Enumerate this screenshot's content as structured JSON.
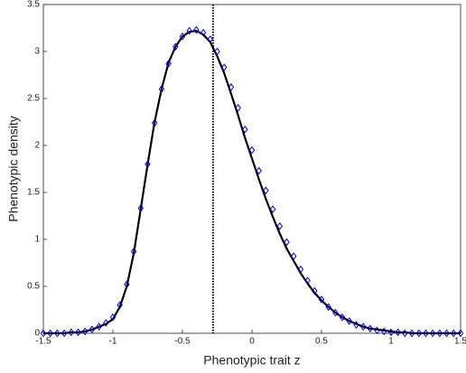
{
  "chart_data": {
    "type": "line",
    "xlabel": "Phenotypic trait z",
    "ylabel": "Phenotypic density",
    "x": [
      -1.5,
      -1.45,
      -1.4,
      -1.35,
      -1.3,
      -1.25,
      -1.2,
      -1.15,
      -1.1,
      -1.05,
      -1,
      -0.95,
      -0.9,
      -0.85,
      -0.8,
      -0.75,
      -0.7,
      -0.65,
      -0.6,
      -0.55,
      -0.5,
      -0.45,
      -0.4,
      -0.35,
      -0.3,
      -0.25,
      -0.2,
      -0.15,
      -0.1,
      -0.05,
      0,
      0.05,
      0.1,
      0.15,
      0.2,
      0.25,
      0.3,
      0.35,
      0.4,
      0.45,
      0.5,
      0.55,
      0.6,
      0.65,
      0.7,
      0.75,
      0.8,
      0.85,
      0.9,
      0.95,
      1,
      1.05,
      1.1,
      1.15,
      1.2,
      1.25,
      1.3,
      1.35,
      1.4,
      1.45,
      1.5
    ],
    "series": [
      {
        "style": "line",
        "color": "#000000",
        "values": [
          0,
          0,
          0,
          0,
          0.01,
          0.01,
          0.02,
          0.04,
          0.07,
          0.1,
          0.15,
          0.28,
          0.5,
          0.85,
          1.32,
          1.8,
          2.25,
          2.6,
          2.88,
          3.05,
          3.16,
          3.21,
          3.22,
          3.18,
          3.1,
          2.95,
          2.77,
          2.55,
          2.32,
          2.08,
          1.86,
          1.64,
          1.43,
          1.24,
          1.06,
          0.9,
          0.77,
          0.64,
          0.53,
          0.43,
          0.35,
          0.28,
          0.22,
          0.17,
          0.13,
          0.1,
          0.07,
          0.05,
          0.04,
          0.03,
          0.02,
          0.01,
          0.01,
          0,
          0,
          0,
          0,
          0,
          0,
          0,
          0
        ]
      },
      {
        "style": "marker",
        "color": "#0000cc",
        "values": [
          0,
          0,
          0,
          0,
          0.01,
          0.01,
          0.02,
          0.04,
          0.07,
          0.11,
          0.17,
          0.3,
          0.52,
          0.87,
          1.33,
          1.8,
          2.24,
          2.6,
          2.87,
          3.05,
          3.16,
          3.22,
          3.23,
          3.2,
          3.13,
          3.0,
          2.83,
          2.62,
          2.4,
          2.17,
          1.95,
          1.73,
          1.52,
          1.32,
          1.14,
          0.97,
          0.82,
          0.68,
          0.56,
          0.45,
          0.36,
          0.28,
          0.22,
          0.17,
          0.13,
          0.09,
          0.07,
          0.05,
          0.03,
          0.02,
          0.01,
          0.01,
          0,
          0,
          0,
          0,
          0,
          0,
          0,
          0,
          0
        ]
      }
    ],
    "vline": -0.28,
    "vline_color": "#000000",
    "xlim": [
      -1.5,
      1.5
    ],
    "xticks": [
      -1.5,
      -1,
      -0.5,
      0,
      0.5,
      1,
      1.5
    ],
    "ylim": [
      0,
      3.5
    ],
    "yticks": [
      0,
      0.5,
      1,
      1.5,
      2,
      2.5,
      3,
      3.5
    ]
  }
}
